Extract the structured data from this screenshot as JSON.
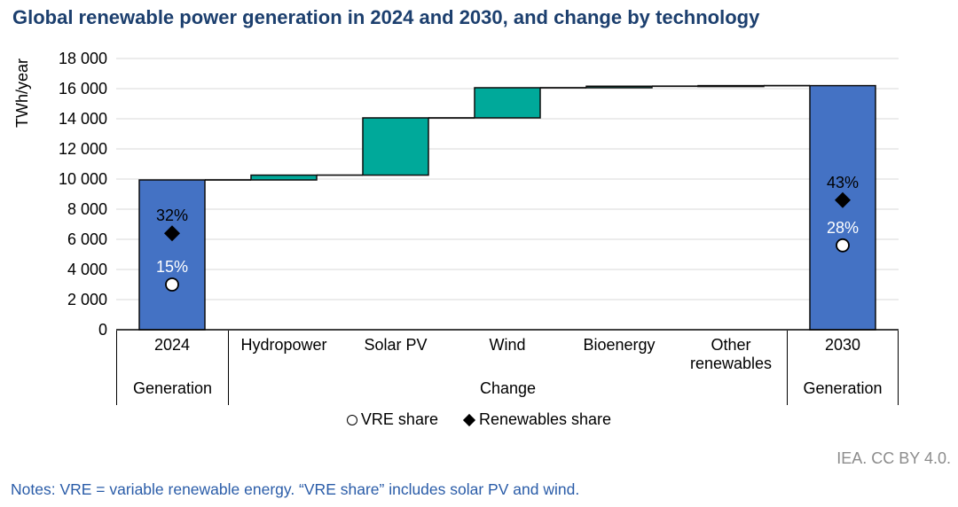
{
  "title": "Global renewable power generation in 2024 and 2030, and change by technology",
  "attribution": "IEA. CC BY 4.0.",
  "notes": "Notes: VRE = variable renewable energy. “VRE share” includes solar PV and wind.",
  "legend": {
    "items": [
      {
        "marker": "circle",
        "label": "VRE share"
      },
      {
        "marker": "diamond",
        "label": "Renewables share"
      }
    ]
  },
  "chart_data": {
    "type": "bar",
    "subtype": "waterfall",
    "title": "Global renewable power generation in 2024 and 2030, and change by technology",
    "ylabel": "TWh/year",
    "ylim": [
      0,
      18000
    ],
    "ytick_interval": 2000,
    "ytick_labels": [
      "0",
      "2 000",
      "4 000",
      "6 000",
      "8 000",
      "10 000",
      "12 000",
      "14 000",
      "16 000",
      "18 000"
    ],
    "grid": true,
    "legend_position": "bottom",
    "colors": {
      "total_bar": "#4472C4",
      "change_bar": "#00A99A",
      "bar_border": "#0D0D0D",
      "connector": "#0D0D0D",
      "gridline": "#D9D9D9",
      "axis": "#000000"
    },
    "columns": [
      {
        "label": "2024",
        "group": "Generation",
        "kind": "total",
        "start": 0,
        "end": 9940,
        "value": 9940
      },
      {
        "label": "Hydropower",
        "group": "Change",
        "kind": "change",
        "start": 9940,
        "end": 10260,
        "value": 320
      },
      {
        "label": "Solar PV",
        "group": "Change",
        "kind": "change",
        "start": 10260,
        "end": 14060,
        "value": 3800
      },
      {
        "label": "Wind",
        "group": "Change",
        "kind": "change",
        "start": 14060,
        "end": 16060,
        "value": 2000
      },
      {
        "label": "Bioenergy",
        "group": "Change",
        "kind": "change",
        "start": 16060,
        "end": 16160,
        "value": 100
      },
      {
        "label": "Other renewables",
        "group": "Change",
        "kind": "change",
        "start": 16160,
        "end": 16200,
        "value": 40
      },
      {
        "label": "2030",
        "group": "Generation",
        "kind": "total",
        "start": 0,
        "end": 16200,
        "value": 16200
      }
    ],
    "groups": [
      {
        "label": "Generation",
        "col_from": 0,
        "col_to": 0
      },
      {
        "label": "Change",
        "col_from": 1,
        "col_to": 5
      },
      {
        "label": "Generation",
        "col_from": 6,
        "col_to": 6
      }
    ],
    "percent_axis_max": 90,
    "markers": [
      {
        "column_index": 0,
        "series": "Renewables share",
        "shape": "diamond",
        "percent": 32,
        "label": "32%",
        "label_color": "#000000"
      },
      {
        "column_index": 0,
        "series": "VRE share",
        "shape": "circle",
        "percent": 15,
        "label": "15%",
        "label_color": "#FFFFFF"
      },
      {
        "column_index": 6,
        "series": "Renewables share",
        "shape": "diamond",
        "percent": 43,
        "label": "43%",
        "label_color": "#000000"
      },
      {
        "column_index": 6,
        "series": "VRE share",
        "shape": "circle",
        "percent": 28,
        "label": "28%",
        "label_color": "#FFFFFF"
      }
    ]
  }
}
